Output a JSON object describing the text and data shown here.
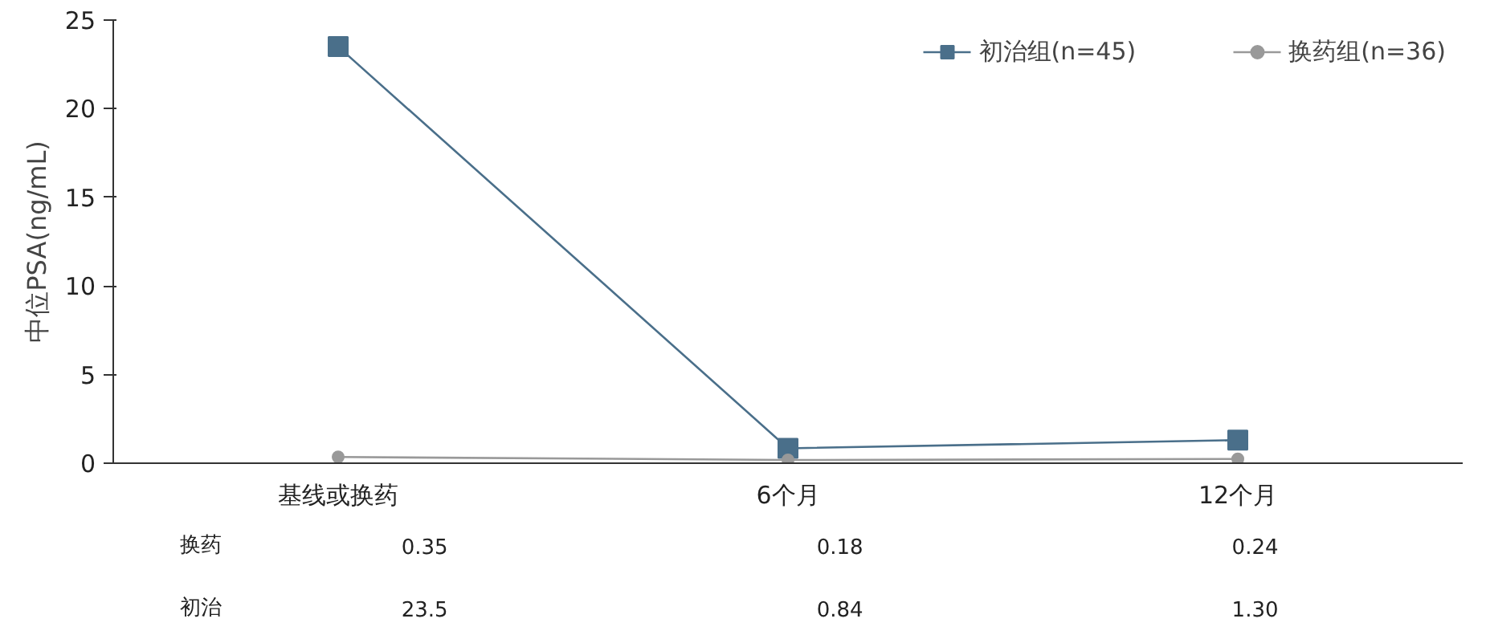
{
  "chart_data": {
    "type": "line",
    "ylabel": "中位PSA(ng/mL)",
    "categories": [
      "基线或换药",
      "6个月",
      "12个月"
    ],
    "series": [
      {
        "name": "初治组(n=45)",
        "color": "#4a6f8a",
        "marker": "square",
        "values": [
          23.5,
          0.84,
          1.3
        ],
        "value_labels": [
          "23.5",
          "0.84",
          "1.30"
        ]
      },
      {
        "name": "换药组(n=36)",
        "color": "#999999",
        "marker": "circle",
        "values": [
          0.35,
          0.18,
          0.24
        ],
        "value_labels": [
          "0.35",
          "0.18",
          "0.24"
        ]
      }
    ],
    "annotations": [
      "换药",
      "初治"
    ],
    "ylim": [
      0,
      25
    ],
    "yticks": [
      0,
      5,
      10,
      15,
      20,
      25
    ],
    "grid": false,
    "legend": "top right",
    "line_style": "solid",
    "data_labels": true
  }
}
